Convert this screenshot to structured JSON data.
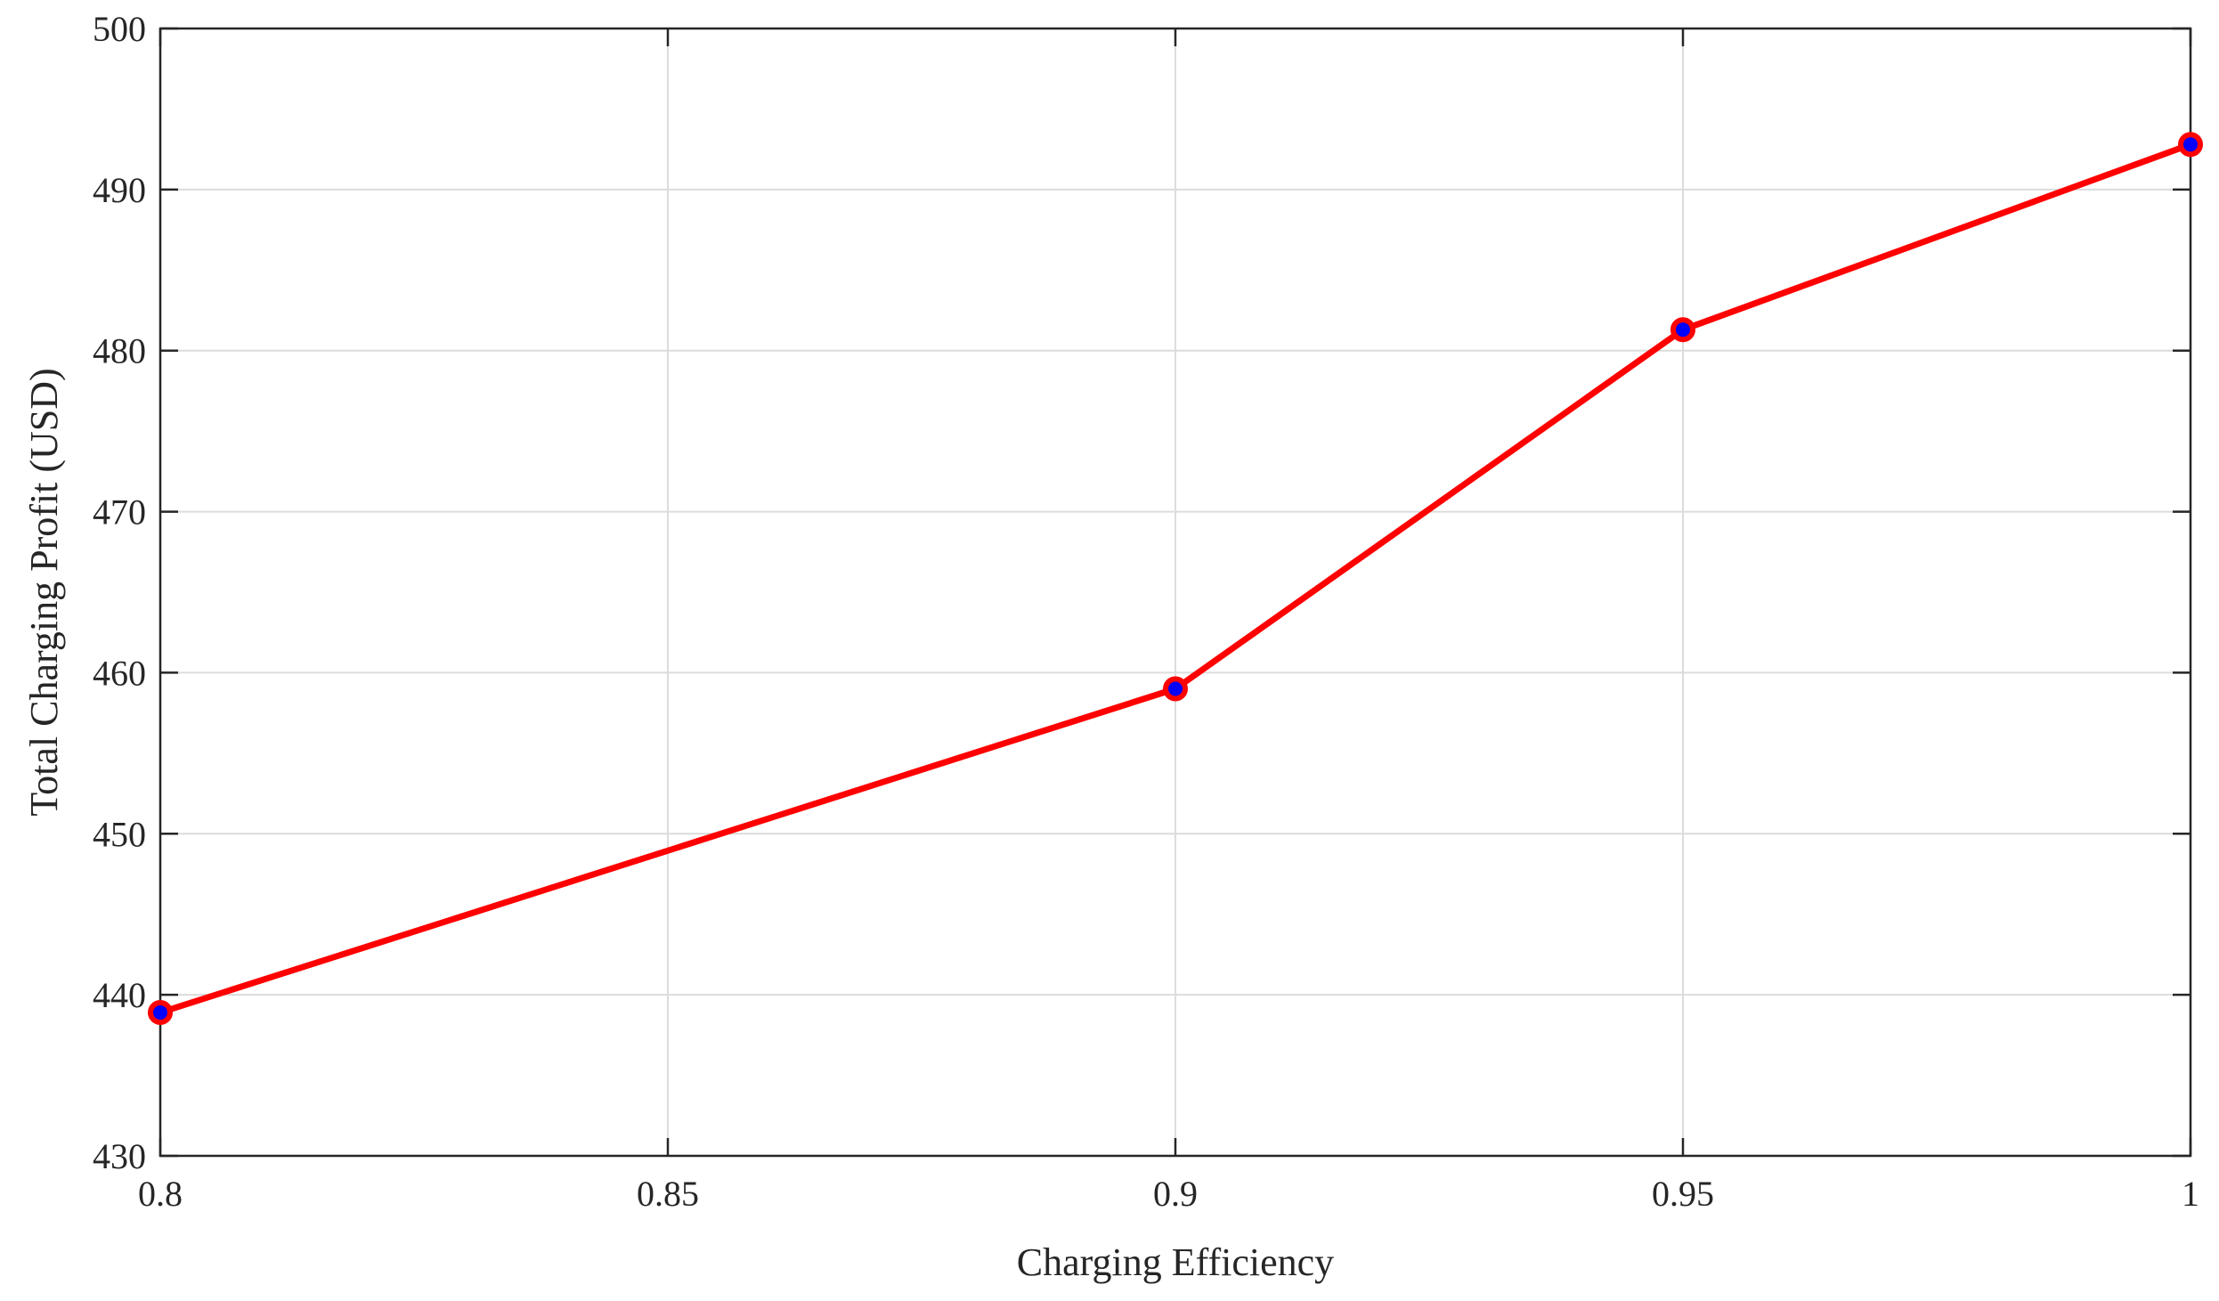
{
  "chart_data": {
    "type": "line",
    "title": "",
    "xlabel": "Charging Efficiency",
    "ylabel": "Total Charging Profit (USD)",
    "xlim": [
      0.8,
      1
    ],
    "ylim": [
      430,
      500
    ],
    "x_ticks": [
      "0.8",
      "0.85",
      "0.9",
      "0.95",
      "1"
    ],
    "x_tick_values": [
      0.8,
      0.85,
      0.9,
      0.95,
      1
    ],
    "y_ticks": [
      "430",
      "440",
      "450",
      "460",
      "470",
      "480",
      "490",
      "500"
    ],
    "y_tick_values": [
      430,
      440,
      450,
      460,
      470,
      480,
      490,
      500
    ],
    "grid": true,
    "legend": "none",
    "series": [
      {
        "x": [
          0.8,
          0.9,
          0.95,
          1
        ],
        "y": [
          438.9,
          459.0,
          481.3,
          492.8
        ],
        "line_color": "#ff0000",
        "marker": "circle",
        "marker_edge_color": "#ff0000",
        "marker_face_color": "#0000ff"
      }
    ]
  }
}
